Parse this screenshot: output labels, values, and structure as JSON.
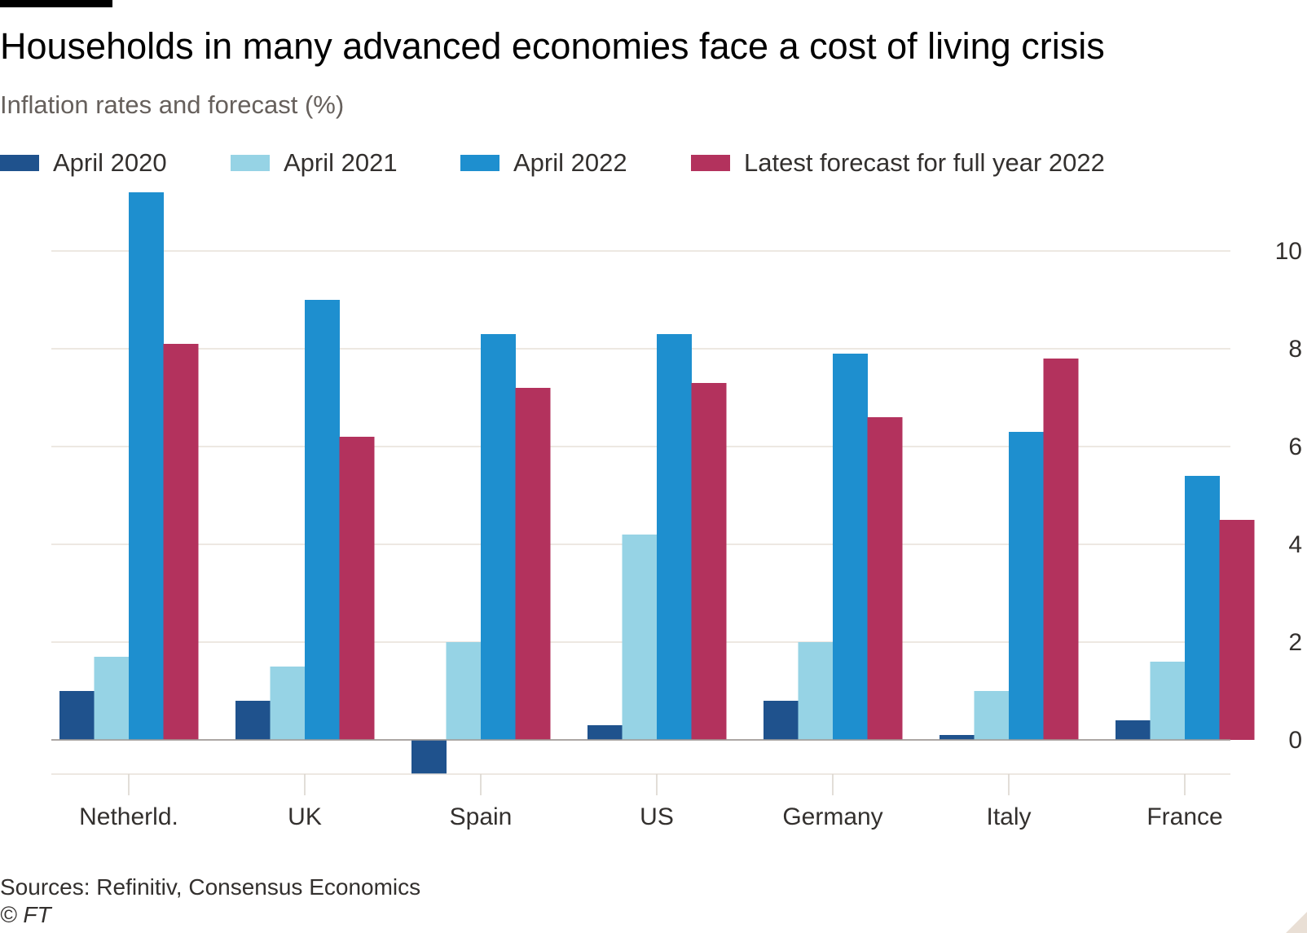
{
  "chart_data": {
    "type": "bar",
    "title": "Households in many advanced economies face a cost of living crisis",
    "subtitle": "Inflation rates and forecast (%)",
    "categories": [
      "Netherld.",
      "UK",
      "Spain",
      "US",
      "Germany",
      "Italy",
      "France"
    ],
    "series": [
      {
        "name": "April 2020",
        "color": "#1f528d",
        "values": [
          1.0,
          0.8,
          -0.7,
          0.3,
          0.8,
          0.1,
          0.4
        ]
      },
      {
        "name": "April 2021",
        "color": "#96d3e5",
        "values": [
          1.7,
          1.5,
          2.0,
          4.2,
          2.0,
          1.0,
          1.6
        ]
      },
      {
        "name": "April 2022",
        "color": "#1e8fcf",
        "values": [
          11.2,
          9.0,
          8.3,
          8.3,
          7.9,
          6.3,
          5.4
        ]
      },
      {
        "name": "Latest forecast for full year 2022",
        "color": "#b3325d",
        "values": [
          8.1,
          6.2,
          7.2,
          7.3,
          6.6,
          7.8,
          4.5
        ]
      }
    ],
    "xlabel": "",
    "ylabel": "",
    "ylim": [
      -0.7,
      11.2
    ],
    "yticks": [
      0,
      2,
      4,
      6,
      8,
      10
    ],
    "y_axis_side": "right",
    "grid": true,
    "legend_position": "top-left",
    "source": "Sources: Refinitiv, Consensus Economics",
    "copyright": "© FT"
  }
}
